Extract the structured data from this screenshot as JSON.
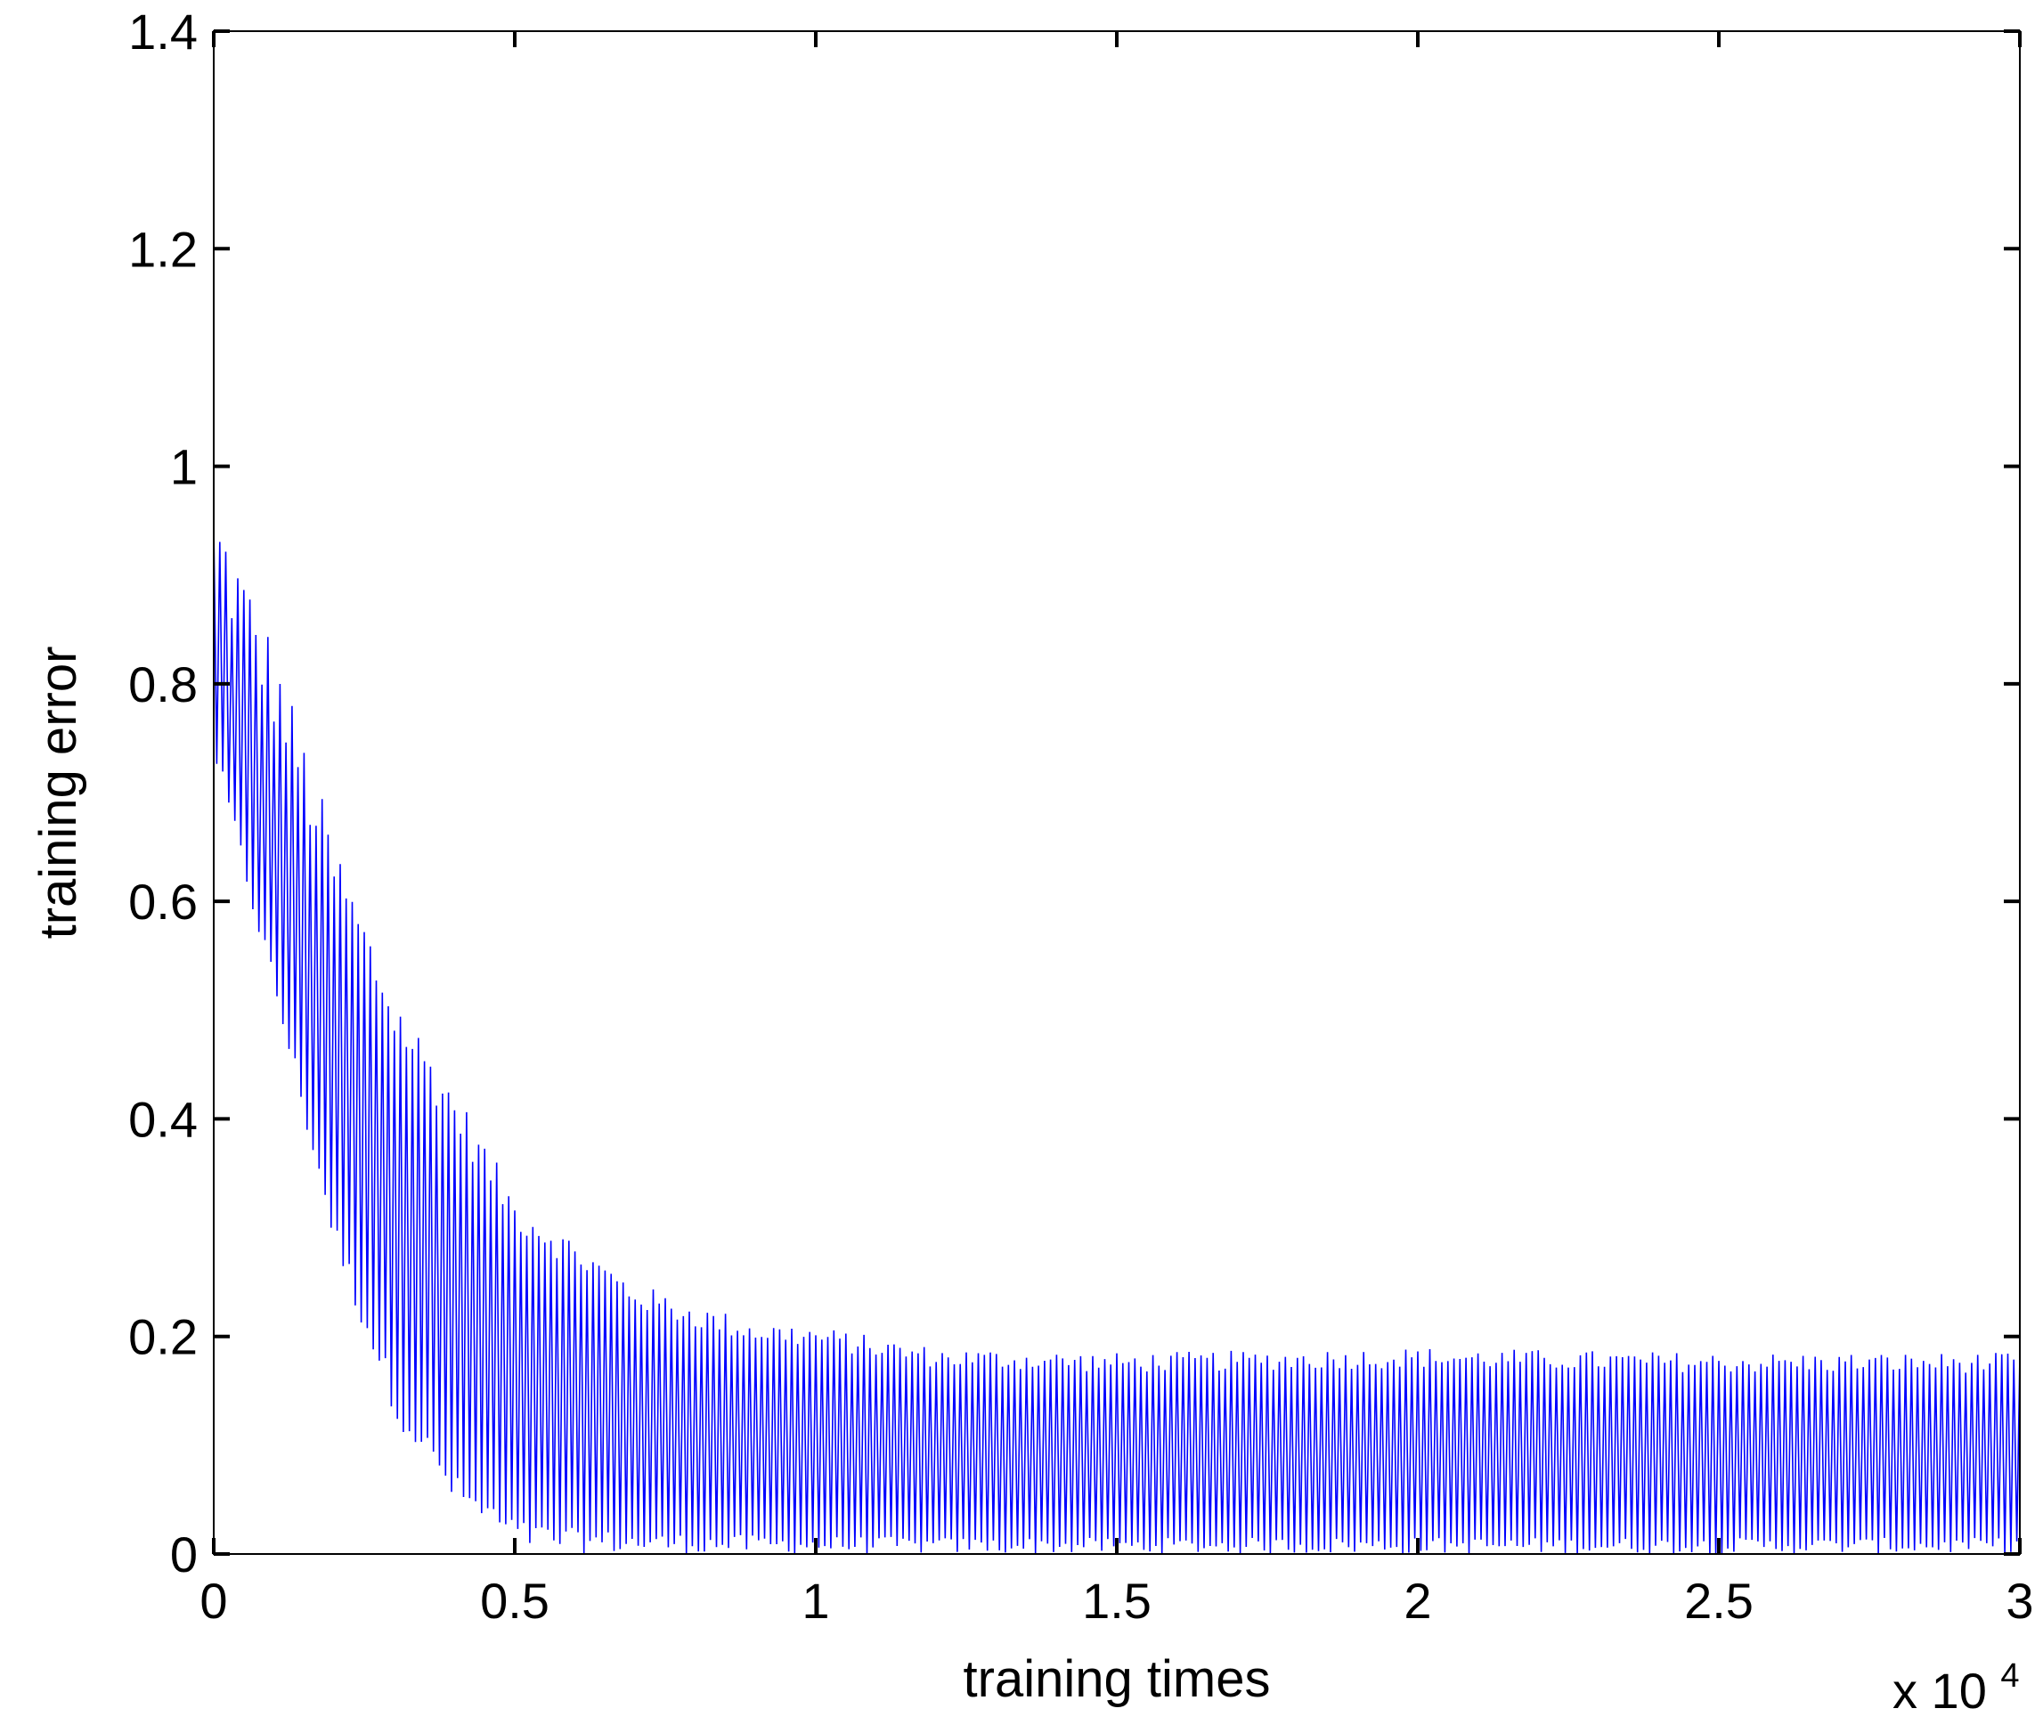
{
  "chart_data": {
    "type": "line",
    "title": "",
    "xlabel": "training times",
    "ylabel": "training error",
    "x_multiplier_label": "x 10",
    "x_multiplier_exponent": "4",
    "xlim": [
      0,
      3
    ],
    "ylim": [
      0,
      1.4
    ],
    "xticks": [
      "0",
      "0.5",
      "1",
      "1.5",
      "2",
      "2.5",
      "3"
    ],
    "yticks": [
      "0",
      "0.2",
      "0.4",
      "0.6",
      "0.8",
      "1",
      "1.2",
      "1.4"
    ],
    "grid": false,
    "legend": "none",
    "series": [
      {
        "color": "#0000ff",
        "description_envelope": {
          "x": [
            0,
            0.1,
            0.2,
            0.3,
            0.4,
            0.5,
            0.6,
            0.7,
            0.8,
            0.9,
            1.0,
            1.2,
            1.5,
            2.0,
            2.5,
            3.0
          ],
          "upper": [
            0.98,
            0.84,
            0.66,
            0.52,
            0.43,
            0.33,
            0.29,
            0.25,
            0.23,
            0.215,
            0.21,
            0.19,
            0.185,
            0.19,
            0.185,
            0.185
          ],
          "lower": [
            0.72,
            0.5,
            0.27,
            0.12,
            0.04,
            0.005,
            0.0,
            0.0,
            0.0,
            0.0,
            0.0,
            0.0,
            0.0,
            0.0,
            0.0,
            0.0
          ]
        },
        "oscillation_cycles": 300
      }
    ],
    "colors": {
      "axes": "#000000",
      "line": "#0000ff"
    }
  }
}
